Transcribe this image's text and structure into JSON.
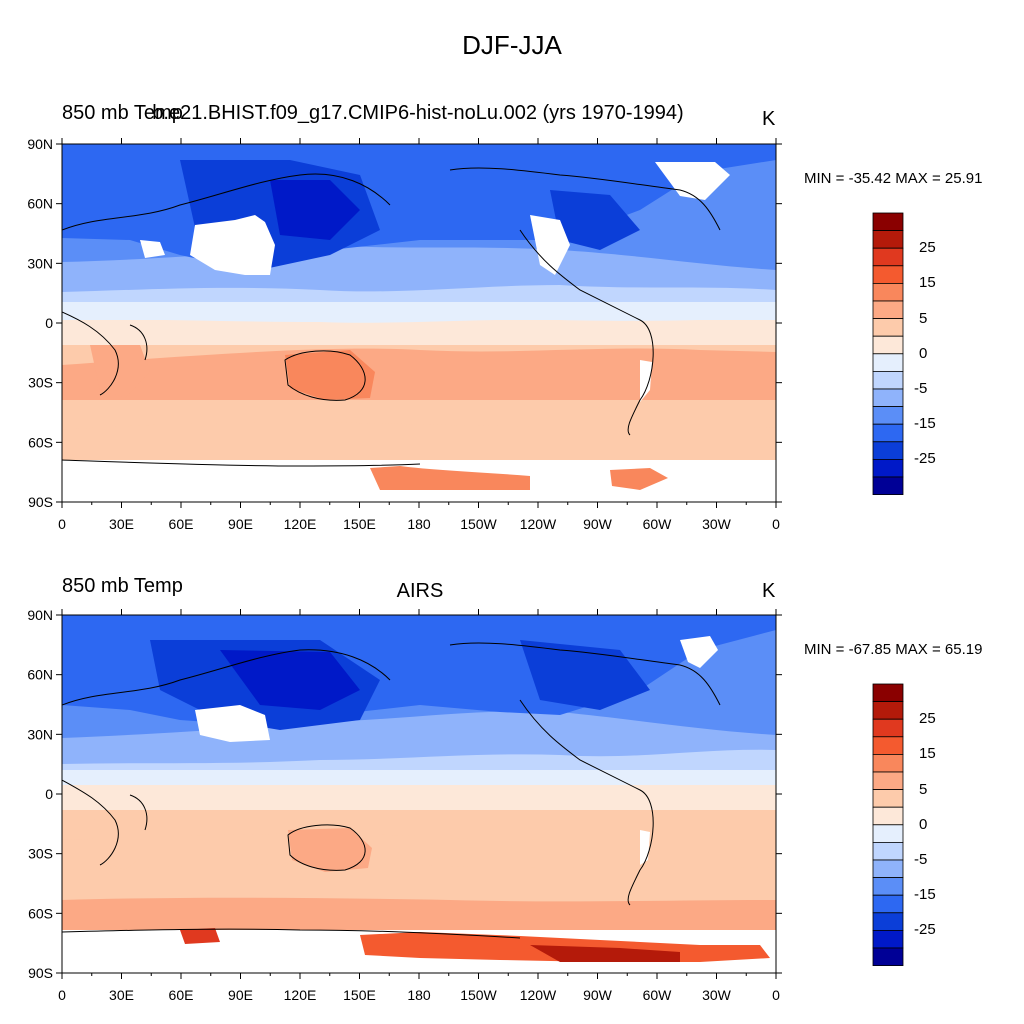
{
  "title": "DJF-JJA",
  "units": "K",
  "colors": [
    "#000096",
    "#0019c8",
    "#0b3ed8",
    "#2d68f2",
    "#5b8ef7",
    "#8fb3fb",
    "#c0d6fe",
    "#e5effd",
    "#fde8d9",
    "#fdcbab",
    "#fca985",
    "#f9875c",
    "#f45a2f",
    "#e0391f",
    "#b41a0a",
    "#8a0000"
  ],
  "colorbar_labels": [
    "25",
    "15",
    "5",
    "0",
    "-5",
    "-15",
    "-25"
  ],
  "x_ticks": [
    "0",
    "30E",
    "60E",
    "90E",
    "120E",
    "150E",
    "180",
    "150W",
    "120W",
    "90W",
    "60W",
    "30W",
    "0"
  ],
  "y_ticks": [
    "90N",
    "60N",
    "30N",
    "0",
    "30S",
    "60S",
    "90S"
  ],
  "panels": [
    {
      "left_title": "850 mb Temp",
      "center_title": "b.e21.BHIST.f09_g17.CMIP6-hist-noLu.002 (yrs 1970-1994)",
      "right_title": "K",
      "stats": "MIN = -35.42 MAX =  25.91"
    },
    {
      "left_title": "850 mb Temp",
      "center_title": "AIRS",
      "right_title": "K",
      "stats": "MIN = -67.85 MAX =  65.19"
    }
  ]
}
